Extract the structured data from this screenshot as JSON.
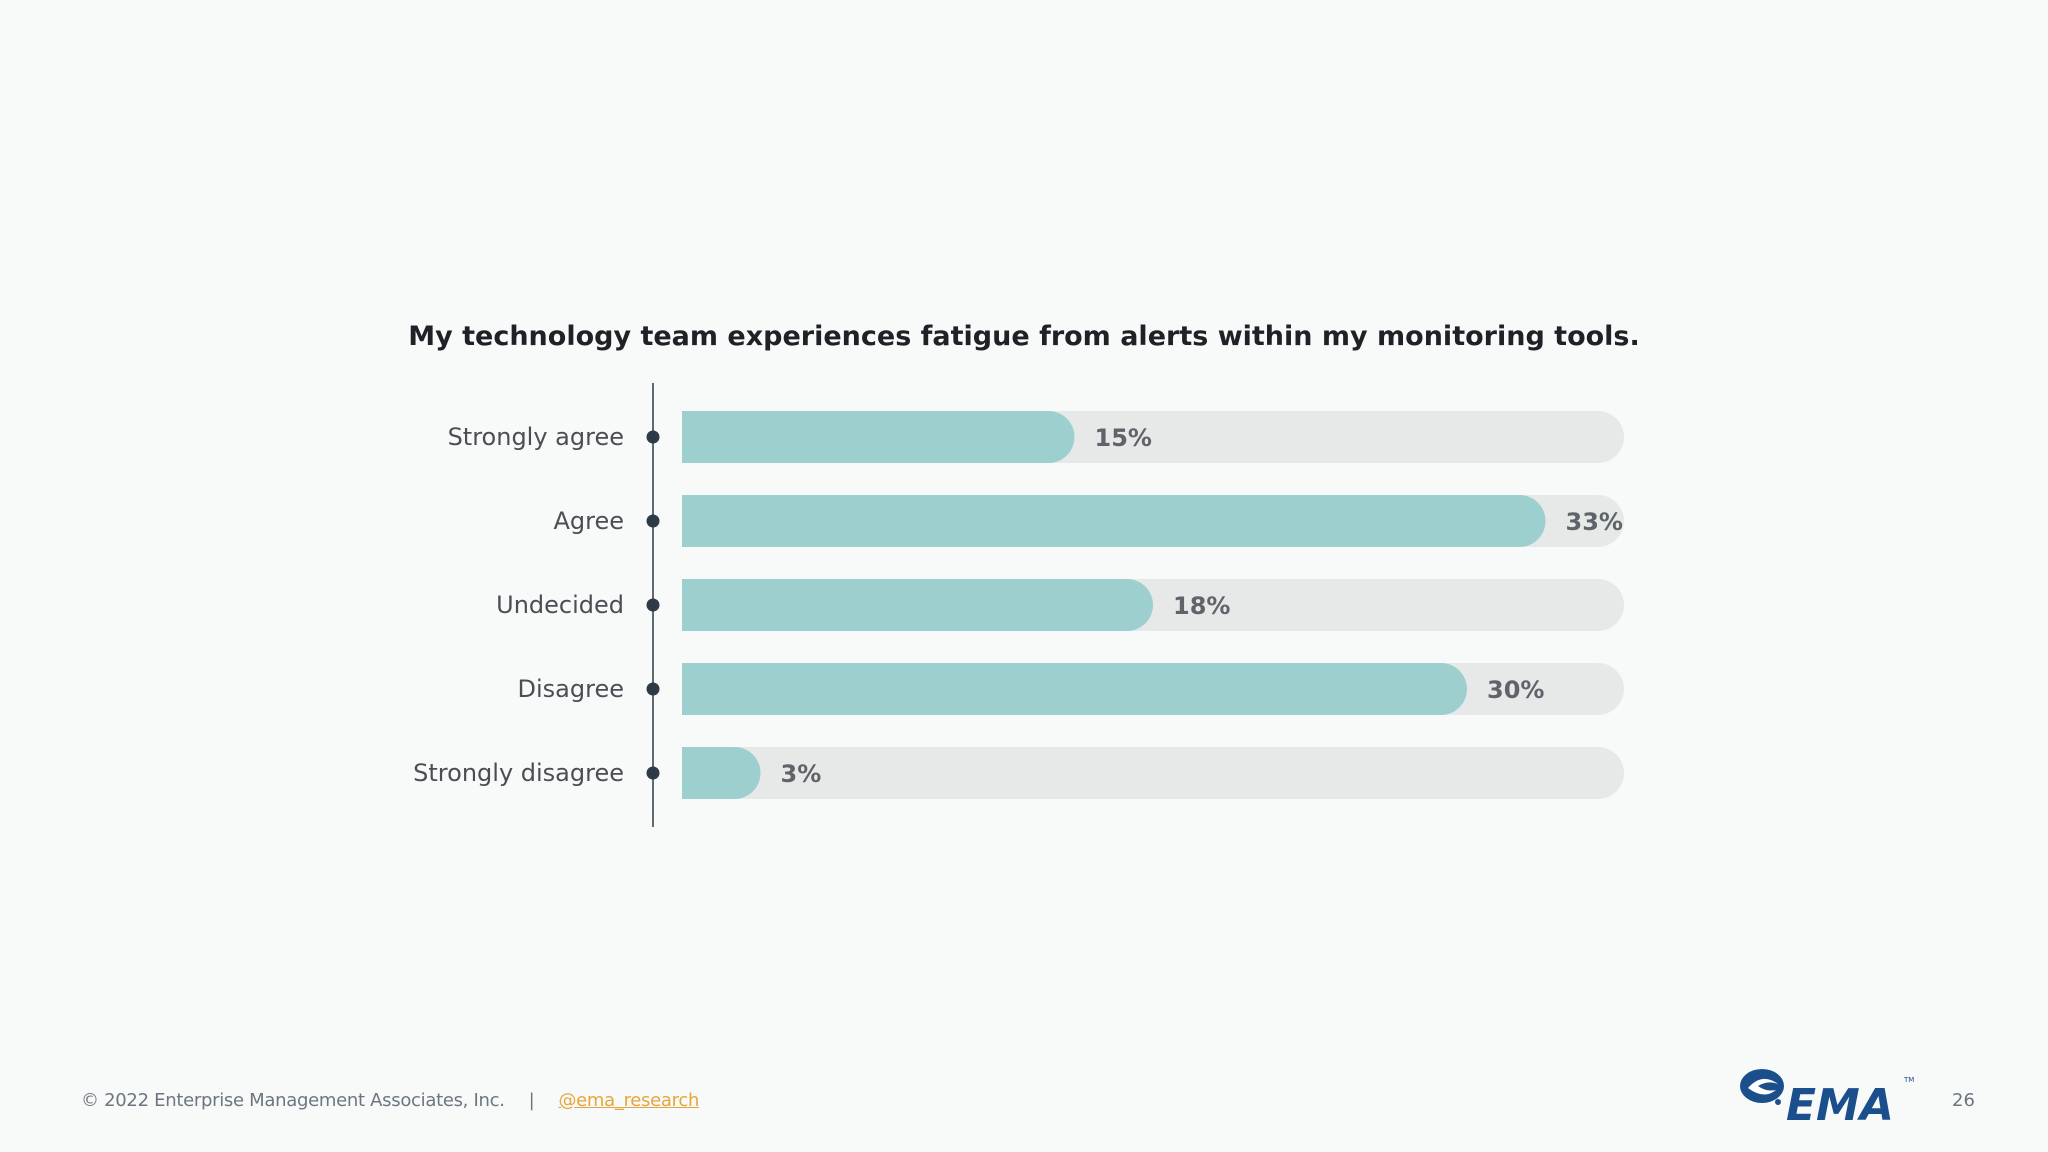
{
  "chart_data": {
    "type": "bar",
    "orientation": "horizontal",
    "title": "My technology team experiences fatigue from alerts within my monitoring tools.",
    "categories": [
      "Strongly agree",
      "Agree",
      "Undecided",
      "Disagree",
      "Strongly disagree"
    ],
    "values": [
      15,
      33,
      18,
      30,
      3
    ],
    "value_labels": [
      "15%",
      "33%",
      "18%",
      "30%",
      "3%"
    ],
    "unit": "%",
    "xlim": [
      0,
      36
    ],
    "grid": false,
    "legend": "none",
    "colors": {
      "bar": "#9ccfce",
      "track": "#e6e9e8",
      "axis": "#2e3a45",
      "marker": "#2e3a45"
    }
  },
  "footer": {
    "copyright": "© 2022 Enterprise Management Associates, Inc.",
    "separator": "|",
    "handle": "@ema_research",
    "page_number": "26"
  },
  "logo": {
    "text": "EMA",
    "color": "#1b4f8c"
  }
}
